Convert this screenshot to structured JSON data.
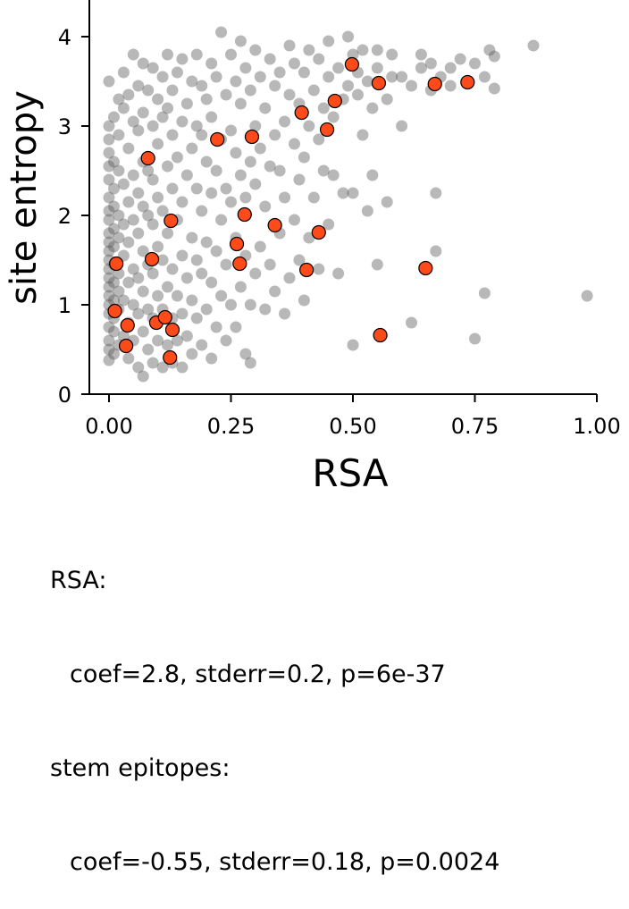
{
  "chart_data": {
    "type": "scatter",
    "xlabel": "RSA",
    "ylabel": "site entropy",
    "xlim": [
      -0.04,
      1.0
    ],
    "ylim": [
      0,
      4.4
    ],
    "xticks": [
      "0.00",
      "0.25",
      "0.50",
      "0.75",
      "1.00"
    ],
    "yticks": [
      "0",
      "1",
      "2",
      "3",
      "4"
    ],
    "grid": false,
    "colors": {
      "background_points": "#555555",
      "highlight_points": "#ff4a1a",
      "highlight_edge": "#000000"
    },
    "series": [
      {
        "role": "background",
        "points": [
          [
            0.0,
            0.38
          ],
          [
            0.0,
            0.5
          ],
          [
            0.0,
            0.6
          ],
          [
            0.0,
            0.75
          ],
          [
            0.0,
            0.9
          ],
          [
            0.0,
            1.0
          ],
          [
            0.0,
            1.1
          ],
          [
            0.0,
            1.2
          ],
          [
            0.0,
            1.3
          ],
          [
            0.0,
            1.4
          ],
          [
            0.0,
            1.5
          ],
          [
            0.0,
            1.6
          ],
          [
            0.0,
            1.7
          ],
          [
            0.0,
            1.8
          ],
          [
            0.0,
            1.95
          ],
          [
            0.0,
            2.05
          ],
          [
            0.0,
            2.2
          ],
          [
            0.0,
            2.4
          ],
          [
            0.0,
            2.55
          ],
          [
            0.0,
            2.7
          ],
          [
            0.0,
            2.85
          ],
          [
            0.0,
            3.0
          ],
          [
            0.0,
            3.5
          ],
          [
            0.01,
            0.45
          ],
          [
            0.01,
            0.7
          ],
          [
            0.01,
            0.85
          ],
          [
            0.01,
            1.05
          ],
          [
            0.01,
            1.25
          ],
          [
            0.01,
            1.45
          ],
          [
            0.01,
            1.65
          ],
          [
            0.01,
            1.85
          ],
          [
            0.01,
            2.1
          ],
          [
            0.01,
            2.3
          ],
          [
            0.01,
            2.6
          ],
          [
            0.01,
            3.1
          ],
          [
            0.02,
            0.55
          ],
          [
            0.02,
            0.95
          ],
          [
            0.02,
            1.15
          ],
          [
            0.02,
            1.35
          ],
          [
            0.02,
            1.75
          ],
          [
            0.02,
            2.0
          ],
          [
            0.02,
            2.5
          ],
          [
            0.02,
            2.9
          ],
          [
            0.02,
            3.3
          ],
          [
            0.03,
            0.65
          ],
          [
            0.03,
            1.05
          ],
          [
            0.03,
            1.55
          ],
          [
            0.03,
            1.9
          ],
          [
            0.03,
            2.35
          ],
          [
            0.03,
            3.2
          ],
          [
            0.03,
            3.6
          ],
          [
            0.04,
            0.4
          ],
          [
            0.04,
            0.8
          ],
          [
            0.04,
            1.25
          ],
          [
            0.04,
            1.7
          ],
          [
            0.04,
            2.15
          ],
          [
            0.04,
            2.75
          ],
          [
            0.04,
            3.35
          ],
          [
            0.05,
            0.6
          ],
          [
            0.05,
            1.0
          ],
          [
            0.05,
            1.4
          ],
          [
            0.05,
            1.95
          ],
          [
            0.05,
            2.45
          ],
          [
            0.05,
            3.05
          ],
          [
            0.05,
            3.8
          ],
          [
            0.06,
            0.3
          ],
          [
            0.06,
            0.9
          ],
          [
            0.06,
            1.3
          ],
          [
            0.06,
            1.8
          ],
          [
            0.06,
            2.25
          ],
          [
            0.06,
            2.95
          ],
          [
            0.06,
            3.45
          ],
          [
            0.07,
            0.2
          ],
          [
            0.07,
            0.7
          ],
          [
            0.07,
            1.15
          ],
          [
            0.07,
            1.6
          ],
          [
            0.07,
            2.1
          ],
          [
            0.07,
            2.6
          ],
          [
            0.07,
            3.15
          ],
          [
            0.07,
            3.7
          ],
          [
            0.08,
            0.5
          ],
          [
            0.08,
            0.95
          ],
          [
            0.08,
            1.45
          ],
          [
            0.08,
            2.0
          ],
          [
            0.08,
            2.5
          ],
          [
            0.08,
            3.4
          ],
          [
            0.09,
            0.35
          ],
          [
            0.09,
            0.85
          ],
          [
            0.09,
            1.35
          ],
          [
            0.09,
            1.9
          ],
          [
            0.09,
            2.4
          ],
          [
            0.09,
            3.0
          ],
          [
            0.09,
            3.65
          ],
          [
            0.1,
            0.6
          ],
          [
            0.1,
            1.1
          ],
          [
            0.1,
            1.65
          ],
          [
            0.1,
            2.2
          ],
          [
            0.1,
            2.8
          ],
          [
            0.1,
            3.3
          ],
          [
            0.11,
            0.3
          ],
          [
            0.11,
            0.95
          ],
          [
            0.11,
            1.5
          ],
          [
            0.11,
            2.05
          ],
          [
            0.11,
            3.1
          ],
          [
            0.11,
            3.55
          ],
          [
            0.12,
            0.55
          ],
          [
            0.12,
            1.2
          ],
          [
            0.12,
            1.8
          ],
          [
            0.12,
            2.55
          ],
          [
            0.12,
            3.2
          ],
          [
            0.12,
            3.8
          ],
          [
            0.13,
            0.35
          ],
          [
            0.13,
            0.85
          ],
          [
            0.13,
            1.4
          ],
          [
            0.13,
            2.3
          ],
          [
            0.13,
            2.9
          ],
          [
            0.13,
            3.4
          ],
          [
            0.14,
            0.6
          ],
          [
            0.14,
            1.1
          ],
          [
            0.14,
            1.95
          ],
          [
            0.14,
            2.65
          ],
          [
            0.14,
            3.6
          ],
          [
            0.15,
            0.3
          ],
          [
            0.15,
            0.9
          ],
          [
            0.15,
            1.55
          ],
          [
            0.15,
            2.15
          ],
          [
            0.15,
            3.05
          ],
          [
            0.15,
            3.75
          ],
          [
            0.16,
            0.65
          ],
          [
            0.16,
            1.3
          ],
          [
            0.16,
            2.45
          ],
          [
            0.16,
            3.25
          ],
          [
            0.17,
            0.45
          ],
          [
            0.17,
            1.05
          ],
          [
            0.17,
            1.75
          ],
          [
            0.17,
            2.75
          ],
          [
            0.17,
            3.5
          ],
          [
            0.18,
            0.85
          ],
          [
            0.18,
            1.5
          ],
          [
            0.18,
            2.3
          ],
          [
            0.18,
            3.0
          ],
          [
            0.18,
            3.8
          ],
          [
            0.19,
            0.55
          ],
          [
            0.19,
            1.35
          ],
          [
            0.19,
            2.05
          ],
          [
            0.19,
            2.9
          ],
          [
            0.19,
            3.45
          ],
          [
            0.2,
            0.95
          ],
          [
            0.2,
            1.7
          ],
          [
            0.2,
            2.6
          ],
          [
            0.2,
            3.3
          ],
          [
            0.21,
            0.4
          ],
          [
            0.21,
            1.25
          ],
          [
            0.21,
            2.25
          ],
          [
            0.21,
            3.1
          ],
          [
            0.21,
            3.7
          ],
          [
            0.22,
            0.75
          ],
          [
            0.22,
            1.6
          ],
          [
            0.22,
            2.5
          ],
          [
            0.22,
            3.55
          ],
          [
            0.23,
            1.1
          ],
          [
            0.23,
            1.95
          ],
          [
            0.23,
            2.85
          ],
          [
            0.23,
            4.05
          ],
          [
            0.24,
            0.6
          ],
          [
            0.24,
            1.45
          ],
          [
            0.24,
            2.3
          ],
          [
            0.24,
            3.35
          ],
          [
            0.25,
            1.0
          ],
          [
            0.25,
            2.15
          ],
          [
            0.25,
            2.95
          ],
          [
            0.25,
            3.8
          ],
          [
            0.26,
            0.75
          ],
          [
            0.26,
            1.75
          ],
          [
            0.26,
            2.7
          ],
          [
            0.26,
            3.5
          ],
          [
            0.27,
            1.2
          ],
          [
            0.27,
            2.45
          ],
          [
            0.27,
            3.25
          ],
          [
            0.27,
            3.95
          ],
          [
            0.28,
            0.45
          ],
          [
            0.28,
            1.55
          ],
          [
            0.28,
            2.2
          ],
          [
            0.28,
            3.65
          ],
          [
            0.29,
            0.35
          ],
          [
            0.29,
            1.0
          ],
          [
            0.29,
            2.6
          ],
          [
            0.29,
            3.4
          ],
          [
            0.3,
            1.35
          ],
          [
            0.3,
            2.35
          ],
          [
            0.3,
            3.0
          ],
          [
            0.3,
            3.85
          ],
          [
            0.31,
            1.65
          ],
          [
            0.31,
            2.75
          ],
          [
            0.31,
            3.55
          ],
          [
            0.32,
            0.95
          ],
          [
            0.32,
            2.1
          ],
          [
            0.32,
            3.2
          ],
          [
            0.33,
            1.45
          ],
          [
            0.33,
            2.55
          ],
          [
            0.33,
            3.75
          ],
          [
            0.34,
            1.15
          ],
          [
            0.34,
            2.9
          ],
          [
            0.34,
            3.45
          ],
          [
            0.35,
            1.8
          ],
          [
            0.35,
            2.5
          ],
          [
            0.35,
            3.6
          ],
          [
            0.36,
            0.9
          ],
          [
            0.36,
            2.2
          ],
          [
            0.36,
            3.05
          ],
          [
            0.37,
            1.3
          ],
          [
            0.37,
            3.35
          ],
          [
            0.37,
            3.9
          ],
          [
            0.38,
            1.95
          ],
          [
            0.38,
            2.8
          ],
          [
            0.38,
            3.7
          ],
          [
            0.39,
            1.5
          ],
          [
            0.39,
            2.4
          ],
          [
            0.39,
            3.25
          ],
          [
            0.4,
            1.05
          ],
          [
            0.4,
            2.65
          ],
          [
            0.4,
            3.6
          ],
          [
            0.41,
            1.75
          ],
          [
            0.41,
            3.0
          ],
          [
            0.41,
            3.85
          ],
          [
            0.42,
            2.2
          ],
          [
            0.42,
            3.4
          ],
          [
            0.43,
            1.4
          ],
          [
            0.43,
            2.85
          ],
          [
            0.43,
            3.75
          ],
          [
            0.44,
            2.5
          ],
          [
            0.44,
            3.2
          ],
          [
            0.45,
            1.9
          ],
          [
            0.45,
            3.55
          ],
          [
            0.45,
            3.95
          ],
          [
            0.46,
            2.45
          ],
          [
            0.46,
            3.1
          ],
          [
            0.47,
            1.35
          ],
          [
            0.47,
            3.65
          ],
          [
            0.48,
            2.25
          ],
          [
            0.48,
            3.3
          ],
          [
            0.49,
            3.45
          ],
          [
            0.49,
            4.0
          ],
          [
            0.5,
            0.55
          ],
          [
            0.5,
            2.25
          ],
          [
            0.5,
            3.8
          ],
          [
            0.51,
            3.35
          ],
          [
            0.51,
            3.6
          ],
          [
            0.52,
            2.9
          ],
          [
            0.52,
            3.85
          ],
          [
            0.53,
            2.05
          ],
          [
            0.53,
            3.5
          ],
          [
            0.54,
            2.45
          ],
          [
            0.54,
            3.2
          ],
          [
            0.55,
            1.45
          ],
          [
            0.55,
            3.65
          ],
          [
            0.55,
            3.85
          ],
          [
            0.57,
            2.15
          ],
          [
            0.57,
            3.3
          ],
          [
            0.58,
            3.55
          ],
          [
            0.58,
            3.8
          ],
          [
            0.6,
            3.0
          ],
          [
            0.6,
            3.55
          ],
          [
            0.62,
            0.8
          ],
          [
            0.62,
            3.45
          ],
          [
            0.64,
            3.65
          ],
          [
            0.64,
            3.8
          ],
          [
            0.66,
            3.4
          ],
          [
            0.66,
            3.7
          ],
          [
            0.67,
            1.6
          ],
          [
            0.67,
            2.25
          ],
          [
            0.68,
            3.55
          ],
          [
            0.7,
            3.65
          ],
          [
            0.7,
            3.45
          ],
          [
            0.72,
            3.75
          ],
          [
            0.75,
            0.62
          ],
          [
            0.75,
            3.7
          ],
          [
            0.77,
            1.13
          ],
          [
            0.77,
            3.55
          ],
          [
            0.78,
            3.85
          ],
          [
            0.79,
            3.42
          ],
          [
            0.79,
            3.78
          ],
          [
            0.87,
            3.9
          ],
          [
            0.98,
            1.1
          ]
        ]
      },
      {
        "role": "highlight",
        "points": [
          [
            0.015,
            1.46
          ],
          [
            0.012,
            0.93
          ],
          [
            0.035,
            0.54
          ],
          [
            0.038,
            0.77
          ],
          [
            0.08,
            2.64
          ],
          [
            0.088,
            1.51
          ],
          [
            0.097,
            0.8
          ],
          [
            0.115,
            0.86
          ],
          [
            0.127,
            1.94
          ],
          [
            0.13,
            0.72
          ],
          [
            0.125,
            0.41
          ],
          [
            0.222,
            2.85
          ],
          [
            0.262,
            1.68
          ],
          [
            0.268,
            1.46
          ],
          [
            0.278,
            2.01
          ],
          [
            0.293,
            2.88
          ],
          [
            0.34,
            1.89
          ],
          [
            0.395,
            3.15
          ],
          [
            0.405,
            1.39
          ],
          [
            0.43,
            1.81
          ],
          [
            0.447,
            2.96
          ],
          [
            0.463,
            3.28
          ],
          [
            0.498,
            3.69
          ],
          [
            0.553,
            3.48
          ],
          [
            0.556,
            0.66
          ],
          [
            0.649,
            1.41
          ],
          [
            0.668,
            3.47
          ],
          [
            0.735,
            3.49
          ]
        ]
      }
    ]
  },
  "stats": {
    "rsa_header": "RSA:",
    "rsa_values": "coef=2.8, stderr=0.2, p=6e-37",
    "stem_header": "stem epitopes:",
    "stem_values": "coef=-0.55, stderr=0.18, p=0.0024"
  }
}
